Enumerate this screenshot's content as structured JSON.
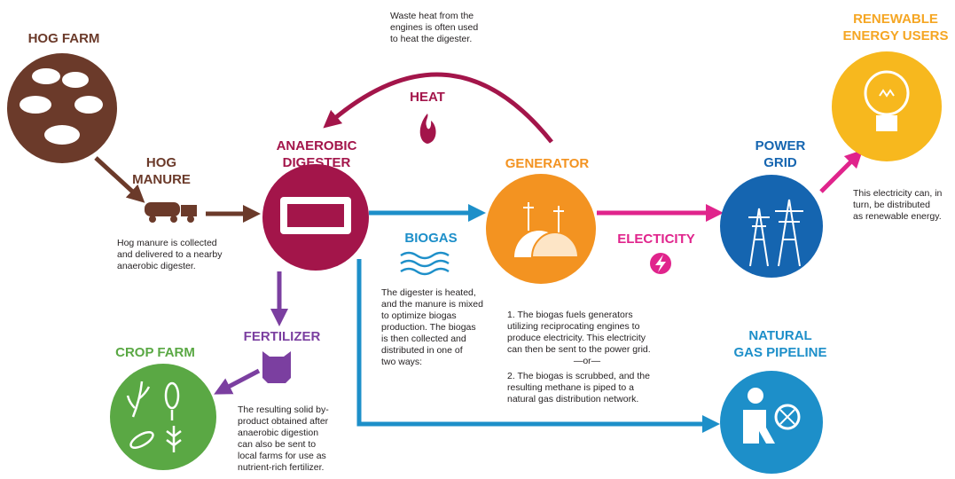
{
  "hog_farm": {
    "label": [
      "HOG FARM"
    ]
  },
  "hog_manure": {
    "label": [
      "HOG",
      "MANURE"
    ],
    "description": [
      "Hog manure is collected",
      "and delivered to a nearby",
      "anaerobic digester."
    ]
  },
  "anaerobic_digester": {
    "label": [
      "ANAEROBIC",
      "DIGESTER"
    ],
    "description": [
      "The digester is heated,",
      "and the manure is mixed",
      "to optimize biogas",
      "production. The biogas",
      "is then collected and",
      "distributed in one of",
      "two ways:"
    ]
  },
  "heat": {
    "label": [
      "HEAT"
    ],
    "description": [
      "Waste heat from the",
      "engines is often used",
      "to heat the digester."
    ]
  },
  "biogas": {
    "label": [
      "BIOGAS"
    ]
  },
  "generator": {
    "label": [
      "GENERATOR"
    ],
    "description": [
      "1. The biogas fuels generators",
      "utilizing reciprocating engines to",
      "produce electricity. This electricity",
      "can then be sent to the power grid."
    ],
    "separator": [
      "—or—"
    ],
    "alternative": [
      "2. The biogas is scrubbed, and the",
      "resulting methane is piped to a",
      "natural gas distribution network."
    ]
  },
  "electricity": {
    "label": [
      "ELECTICITY"
    ]
  },
  "power_grid": {
    "label": [
      "POWER",
      "GRID"
    ]
  },
  "renewable_energy_users": {
    "label": [
      "RENEWABLE",
      "ENERGY USERS"
    ],
    "description": [
      "This electricity can, in",
      "turn, be distributed",
      "as renewable energy."
    ]
  },
  "natural_gas_pipeline": {
    "label": [
      "NATURAL",
      "GAS PIPELINE"
    ]
  },
  "fertilizer": {
    "label": [
      "FERTILIZER"
    ],
    "description": [
      "The resulting solid by-",
      "product obtained after",
      "anaerobic digestion",
      "can also be sent to",
      "local farms for use as",
      "nutrient-rich fertilizer."
    ]
  },
  "crop_farm": {
    "label": [
      "CROP FARM"
    ]
  }
}
